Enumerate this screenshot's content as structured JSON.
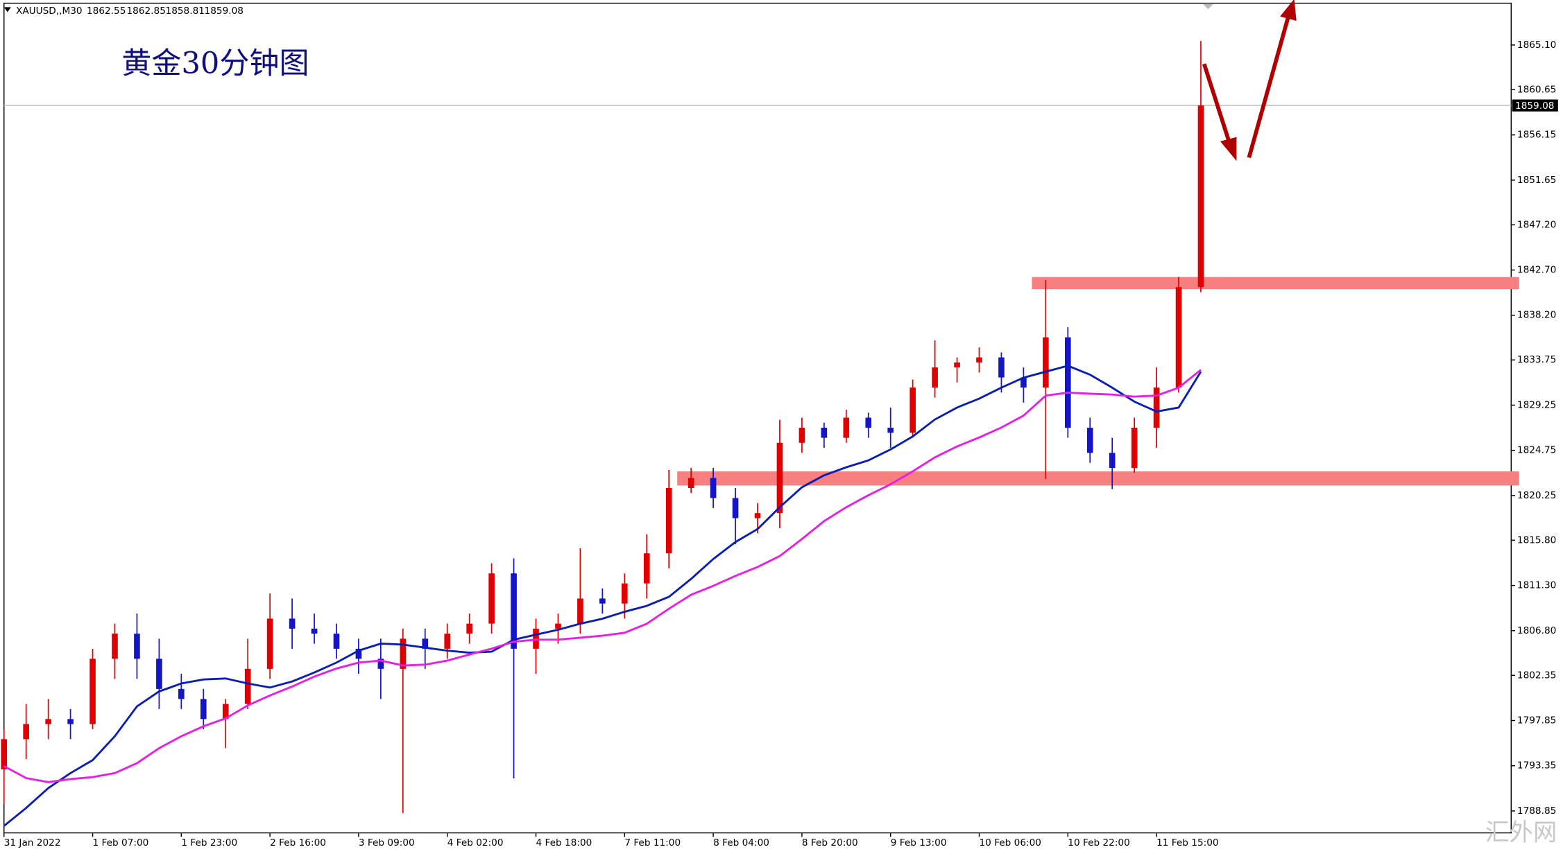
{
  "chart_data": {
    "type": "candlestick",
    "symbol": "XAUUSD,,M30",
    "header_values": [
      1862.55,
      1862.85,
      1858.81,
      1859.08
    ],
    "annotation": "黄金30分钟图",
    "watermark": "汇外网",
    "current_price": {
      "value": 1859.08,
      "label": "1859.08"
    },
    "up_color": "#e00000",
    "down_color": "#1414c8",
    "x": [
      0,
      8,
      16,
      24,
      32,
      40,
      48,
      56,
      64,
      72,
      80,
      88,
      96,
      104,
      112,
      120,
      128,
      136,
      144,
      152,
      160,
      168,
      176,
      184,
      192,
      200,
      208,
      216,
      224,
      232,
      240,
      248,
      256,
      264,
      272,
      280,
      288,
      296,
      304,
      312,
      320,
      328,
      336,
      344,
      352,
      360,
      368,
      376,
      384,
      392,
      400,
      408,
      416,
      424,
      432
    ],
    "open": [
      1793,
      1796,
      1797.5,
      1798,
      1797.5,
      1804,
      1806.5,
      1804,
      1801,
      1800,
      1798,
      1799.5,
      1803,
      1808,
      1807,
      1806.5,
      1805,
      1804,
      1803,
      1806,
      1805,
      1806.5,
      1807.5,
      1812.5,
      1805,
      1807,
      1807.5,
      1810,
      1809.5,
      1811.5,
      1814.5,
      1821,
      1822,
      1820,
      1818,
      1818.5,
      1825.5,
      1827,
      1826,
      1828,
      1827,
      1826.5,
      1831,
      1833,
      1833.5,
      1834,
      1832,
      1831,
      1836,
      1827,
      1824.5,
      1823,
      1827,
      1831,
      1841
    ],
    "high": [
      1797,
      1799.5,
      1800,
      1799,
      1805,
      1807.5,
      1808.5,
      1806,
      1802.5,
      1801,
      1800,
      1806,
      1810.5,
      1810,
      1808.5,
      1807.5,
      1806,
      1806,
      1807,
      1807,
      1807.5,
      1808.5,
      1813.5,
      1814,
      1808,
      1808.5,
      1815,
      1811,
      1812.5,
      1816.4,
      1822.8,
      1823,
      1823,
      1821,
      1819.5,
      1827.8,
      1828,
      1827.5,
      1828.8,
      1828.5,
      1829,
      1831.8,
      1835.7,
      1834,
      1835,
      1834.5,
      1833,
      1841.7,
      1837,
      1828,
      1826,
      1828,
      1833,
      1842,
      1865.5
    ],
    "low": [
      1789.5,
      1794,
      1796,
      1796,
      1797,
      1802,
      1802,
      1799,
      1799,
      1797,
      1795.1,
      1799,
      1802,
      1805,
      1805.5,
      1804,
      1802.5,
      1800,
      1788.65,
      1803,
      1804,
      1805.5,
      1806.5,
      1792.1,
      1802.5,
      1805.5,
      1806.5,
      1808.5,
      1808,
      1810,
      1813,
      1820.5,
      1819,
      1815.4,
      1816.5,
      1817,
      1824.5,
      1825,
      1825.5,
      1826,
      1825,
      1826,
      1830,
      1831.5,
      1832.5,
      1830.5,
      1829.5,
      1821.9,
      1826,
      1823.5,
      1820.9,
      1822.5,
      1825,
      1830.5,
      1840.5
    ],
    "close": [
      1796,
      1797.5,
      1798,
      1797.5,
      1804,
      1806.5,
      1804,
      1801,
      1800,
      1798,
      1799.5,
      1803,
      1808,
      1807,
      1806.5,
      1805,
      1804,
      1803,
      1806,
      1805,
      1806.5,
      1807.5,
      1812.5,
      1805,
      1807,
      1807.5,
      1810,
      1809.5,
      1811.5,
      1814.5,
      1821,
      1822,
      1820,
      1818,
      1818.5,
      1825.5,
      1827,
      1826,
      1828,
      1827,
      1826.5,
      1831,
      1833,
      1833.5,
      1834,
      1832,
      1831,
      1836,
      1827,
      1824.5,
      1823,
      1827,
      1831,
      1841,
      1859.08
    ],
    "ma": [
      {
        "color": "#0a1eb4",
        "values": [
          1787.36,
          1789.15,
          1791.13,
          1792.62,
          1793.91,
          1796.29,
          1799.26,
          1800.75,
          1801.54,
          1801.94,
          1802.04,
          1801.54,
          1801.14,
          1801.74,
          1802.63,
          1803.62,
          1804.81,
          1805.51,
          1805.41,
          1805.11,
          1804.81,
          1804.61,
          1804.71,
          1805.9,
          1806.4,
          1806.89,
          1807.49,
          1807.99,
          1808.68,
          1809.27,
          1810.17,
          1811.95,
          1813.93,
          1815.62,
          1816.91,
          1819.09,
          1821.07,
          1822.26,
          1823.06,
          1823.75,
          1824.84,
          1826.13,
          1827.82,
          1829.01,
          1829.9,
          1830.99,
          1831.98,
          1832.58,
          1833.17,
          1832.28,
          1830.99,
          1829.6,
          1828.61,
          1829.01,
          1832.58
        ]
      },
      {
        "color": "#e61ee6",
        "values": [
          1793.31,
          1792.12,
          1791.72,
          1792.02,
          1792.22,
          1792.62,
          1793.61,
          1795.1,
          1796.29,
          1797.28,
          1798.07,
          1799.36,
          1800.35,
          1801.24,
          1802.23,
          1803.03,
          1803.62,
          1803.82,
          1803.33,
          1803.42,
          1803.82,
          1804.42,
          1805.01,
          1805.7,
          1805.9,
          1805.9,
          1806.1,
          1806.3,
          1806.59,
          1807.49,
          1808.98,
          1810.37,
          1811.26,
          1812.25,
          1813.14,
          1814.23,
          1815.92,
          1817.7,
          1819.09,
          1820.28,
          1821.37,
          1822.66,
          1824.05,
          1825.14,
          1826.03,
          1827.02,
          1828.21,
          1830.2,
          1830.49,
          1830.39,
          1830.3,
          1830.1,
          1830.2,
          1830.99,
          1832.77
        ]
      }
    ],
    "zones": [
      {
        "start": 243,
        "low": 1821.25,
        "high": 1822.65,
        "color": "#f77f7f"
      },
      {
        "start": 371,
        "low": 1840.8,
        "high": 1842.0,
        "color": "#f77f7f"
      }
    ],
    "xlim": [
      0,
      544
    ],
    "xticks": [
      {
        "value": 0,
        "label": "31 Jan 2022"
      },
      {
        "value": 32,
        "label": "1 Feb 07:00"
      },
      {
        "value": 64,
        "label": "1 Feb 23:00"
      },
      {
        "value": 96,
        "label": "2 Feb 16:00"
      },
      {
        "value": 128,
        "label": "3 Feb 09:00"
      },
      {
        "value": 160,
        "label": "4 Feb 02:00"
      },
      {
        "value": 192,
        "label": "4 Feb 18:00"
      },
      {
        "value": 224,
        "label": "7 Feb 11:00"
      },
      {
        "value": 256,
        "label": "8 Feb 04:00"
      },
      {
        "value": 288,
        "label": "8 Feb 20:00"
      },
      {
        "value": 320,
        "label": "9 Feb 13:00"
      },
      {
        "value": 352,
        "label": "10 Feb 06:00"
      },
      {
        "value": 384,
        "label": "10 Feb 22:00"
      },
      {
        "value": 416,
        "label": "11 Feb 15:00"
      }
    ],
    "ylim": [
      1786.67,
      1869.26
    ],
    "yticks": [
      {
        "value": 1865.1,
        "label": "1865.10"
      },
      1860.65,
      1856.15,
      1851.65,
      {
        "value": 1847.2,
        "label": "1847.20"
      },
      {
        "value": 1842.7,
        "label": "1842.70"
      },
      {
        "value": 1838.2,
        "label": "1838.20"
      },
      1833.75,
      1829.25,
      1824.75,
      1820.25,
      {
        "value": 1815.8,
        "label": "1815.80"
      },
      {
        "value": 1811.3,
        "label": "1811.30"
      },
      {
        "value": 1806.8,
        "label": "1806.80"
      },
      1802.35,
      1797.85,
      1793.35,
      1788.85
    ]
  }
}
